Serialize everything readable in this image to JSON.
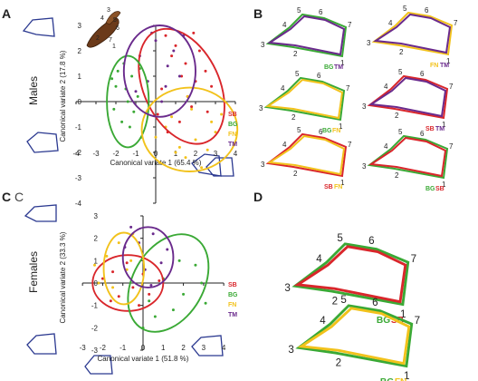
{
  "colors": {
    "SB": "#d9262b",
    "BG": "#3aa935",
    "FN": "#f2c21b",
    "TM": "#6a2a8c",
    "outline": "#2b3990",
    "axis": "#222222"
  },
  "panels": {
    "A": {
      "letter": "A",
      "side": "Males"
    },
    "B": {
      "letter": "B"
    },
    "C": {
      "letter": "C",
      "letter_alt": "C",
      "side": "Females"
    },
    "D": {
      "letter": "D"
    }
  },
  "legend": [
    "SB",
    "BG",
    "FN",
    "TM"
  ],
  "chart_data": [
    {
      "type": "scatter",
      "panel": "A",
      "xlabel": "Canonical variate 1 (65.4 %)",
      "ylabel": "Canonical variate 2 (17.8 %)",
      "xticks": [
        -4,
        -3,
        -2,
        -1,
        0,
        1,
        2,
        3,
        4
      ],
      "yticks": [
        -4,
        -3,
        -2,
        -1,
        0,
        1,
        2,
        3
      ],
      "xlim": [
        -4,
        4
      ],
      "ylim": [
        -4,
        3
      ],
      "ellipses": [
        {
          "group": "SB",
          "cx": 1.3,
          "cy": 0.6,
          "rx": 1.9,
          "ry": 2.4,
          "angle": 25
        },
        {
          "group": "BG",
          "cx": -1.4,
          "cy": 0.0,
          "rx": 1.05,
          "ry": 1.8,
          "angle": 0
        },
        {
          "group": "FN",
          "cx": 1.7,
          "cy": -1.1,
          "rx": 2.4,
          "ry": 1.65,
          "angle": 0
        },
        {
          "group": "TM",
          "cx": 0.2,
          "cy": 1.2,
          "rx": 1.8,
          "ry": 1.8,
          "angle": 0
        }
      ],
      "points": [
        {
          "group": "SB",
          "x": [
            1.0,
            1.5,
            2.0,
            0.5,
            1.8,
            2.5,
            0.3,
            1.2,
            2.2,
            0.8,
            1.6,
            2.8,
            0.1,
            1.9,
            1.3,
            2.6,
            0.6
          ],
          "y": [
            2.2,
            1.5,
            0.8,
            2.6,
            -0.2,
            1.2,
            0.5,
            -0.8,
            2.0,
            1.8,
            0.2,
            0.6,
            -0.5,
            2.7,
            1.0,
            -0.4,
            -1.2
          ]
        },
        {
          "group": "BG",
          "x": [
            -1.9,
            -1.5,
            -1.2,
            -2.1,
            -0.9,
            -1.7,
            -1.3,
            -2.0,
            -0.8,
            -1.6,
            -1.1,
            -1.4,
            -2.2,
            -0.7
          ],
          "y": [
            1.2,
            0.5,
            1.0,
            -0.3,
            0.2,
            -0.8,
            -1.0,
            0.6,
            1.3,
            1.5,
            -0.4,
            0.0,
            0.9,
            -1.4
          ]
        },
        {
          "group": "FN",
          "x": [
            0.5,
            1.2,
            2.0,
            2.8,
            1.5,
            0.0,
            3.0,
            1.8,
            2.3,
            0.8,
            1.0,
            2.6,
            0.2,
            1.6,
            3.3
          ],
          "y": [
            -1.0,
            -1.8,
            -1.5,
            -0.8,
            -2.2,
            -1.4,
            -1.2,
            -0.3,
            -2.6,
            -0.6,
            -2.0,
            -1.9,
            -2.4,
            0.2,
            -0.5
          ]
        },
        {
          "group": "TM",
          "x": [
            -0.8,
            0.0,
            0.6,
            -0.4,
            0.9,
            -1.0,
            0.3,
            1.2,
            -0.2,
            0.5,
            1.4
          ],
          "y": [
            1.8,
            2.4,
            1.4,
            0.8,
            2.0,
            0.4,
            0.0,
            1.0,
            2.7,
            0.6,
            2.6
          ]
        }
      ]
    },
    {
      "type": "scatter",
      "panel": "C",
      "xlabel": "Canonical variate 1 (51.8 %)",
      "ylabel": "Canonical variate 2 (33.3 %)",
      "xticks": [
        -3,
        -2,
        -1,
        0,
        1,
        2,
        3,
        4
      ],
      "yticks": [
        -3,
        -2,
        -1,
        0,
        1,
        2,
        3
      ],
      "xlim": [
        -3,
        4
      ],
      "ylim": [
        -3,
        3
      ],
      "ellipses": [
        {
          "group": "SB",
          "cx": -0.75,
          "cy": 0.0,
          "rx": 1.75,
          "ry": 1.25,
          "angle": 0
        },
        {
          "group": "BG",
          "cx": 1.25,
          "cy": 0.0,
          "rx": 1.75,
          "ry": 2.35,
          "angle": -30
        },
        {
          "group": "FN",
          "cx": -0.95,
          "cy": 0.65,
          "rx": 1.0,
          "ry": 1.6,
          "angle": 0
        },
        {
          "group": "TM",
          "cx": 0.25,
          "cy": 1.15,
          "rx": 1.25,
          "ry": 1.35,
          "angle": 0
        }
      ],
      "points": [
        {
          "group": "SB",
          "x": [
            -1.5,
            -0.5,
            -1.2,
            0.0,
            -2.0,
            -0.8,
            0.3,
            -1.6,
            -0.2,
            0.8
          ],
          "y": [
            0.5,
            -0.2,
            -0.6,
            0.4,
            0.2,
            0.9,
            -0.5,
            -0.8,
            -1.0,
            0.1
          ]
        },
        {
          "group": "BG",
          "x": [
            1.0,
            2.0,
            2.6,
            1.5,
            0.3,
            2.9,
            1.8,
            0.0,
            3.1,
            0.6
          ],
          "y": [
            0.2,
            -0.5,
            0.8,
            -1.2,
            -0.8,
            0.0,
            1.0,
            -2.0,
            -0.9,
            -1.5
          ]
        },
        {
          "group": "FN",
          "x": [
            -1.8,
            -1.2,
            -0.8,
            -2.2,
            -0.5,
            -1.5,
            -2.4,
            -0.6
          ],
          "y": [
            1.2,
            1.8,
            0.6,
            0.0,
            2.2,
            -0.2,
            0.8,
            1.0
          ]
        },
        {
          "group": "TM",
          "x": [
            -0.2,
            0.5,
            0.9,
            0.1,
            -0.6,
            1.2,
            0.4,
            -0.9
          ],
          "y": [
            1.8,
            2.2,
            0.9,
            0.6,
            2.5,
            1.5,
            -0.1,
            1.6
          ]
        }
      ]
    }
  ],
  "wireframes": {
    "B": [
      {
        "label_a": "BG",
        "label_b": "TM",
        "color_a": "BG",
        "color_b": "TM",
        "numbers": [
          "1",
          "2",
          "3",
          "4",
          "5",
          "6",
          "7"
        ]
      },
      {
        "label_a": "FN",
        "label_b": "TM",
        "color_a": "FN",
        "color_b": "TM",
        "numbers": [
          "1",
          "2",
          "3",
          "4",
          "5",
          "6",
          "7"
        ]
      },
      {
        "label_a": "BG",
        "label_b": "FN",
        "color_a": "BG",
        "color_b": "FN",
        "numbers": [
          "1",
          "2",
          "3",
          "4",
          "5",
          "6",
          "7"
        ]
      },
      {
        "label_a": "SB",
        "label_b": "TM",
        "color_a": "SB",
        "color_b": "TM",
        "numbers": [
          "1",
          "2",
          "3",
          "4",
          "5",
          "6",
          "7"
        ]
      },
      {
        "label_a": "SB",
        "label_b": "FN",
        "color_a": "SB",
        "color_b": "FN",
        "numbers": [
          "1",
          "2",
          "3",
          "4",
          "5",
          "6",
          "7"
        ]
      },
      {
        "label_a": "BG",
        "label_b": "SB",
        "color_a": "BG",
        "color_b": "SB",
        "numbers": [
          "1",
          "2",
          "3",
          "4",
          "5",
          "6",
          "7"
        ]
      }
    ],
    "D": [
      {
        "label_a": "BG",
        "label_b": "SB",
        "color_a": "BG",
        "color_b": "SB",
        "numbers": [
          "1",
          "2",
          "3",
          "4",
          "5",
          "6",
          "7"
        ]
      },
      {
        "label_a": "BG",
        "label_b": "FN",
        "color_a": "BG",
        "color_b": "FN",
        "numbers": [
          "1",
          "2",
          "3",
          "4",
          "5",
          "6",
          "7"
        ]
      }
    ]
  },
  "fish_numbers": [
    "1",
    "2",
    "3",
    "4",
    "5",
    "6",
    "7"
  ]
}
